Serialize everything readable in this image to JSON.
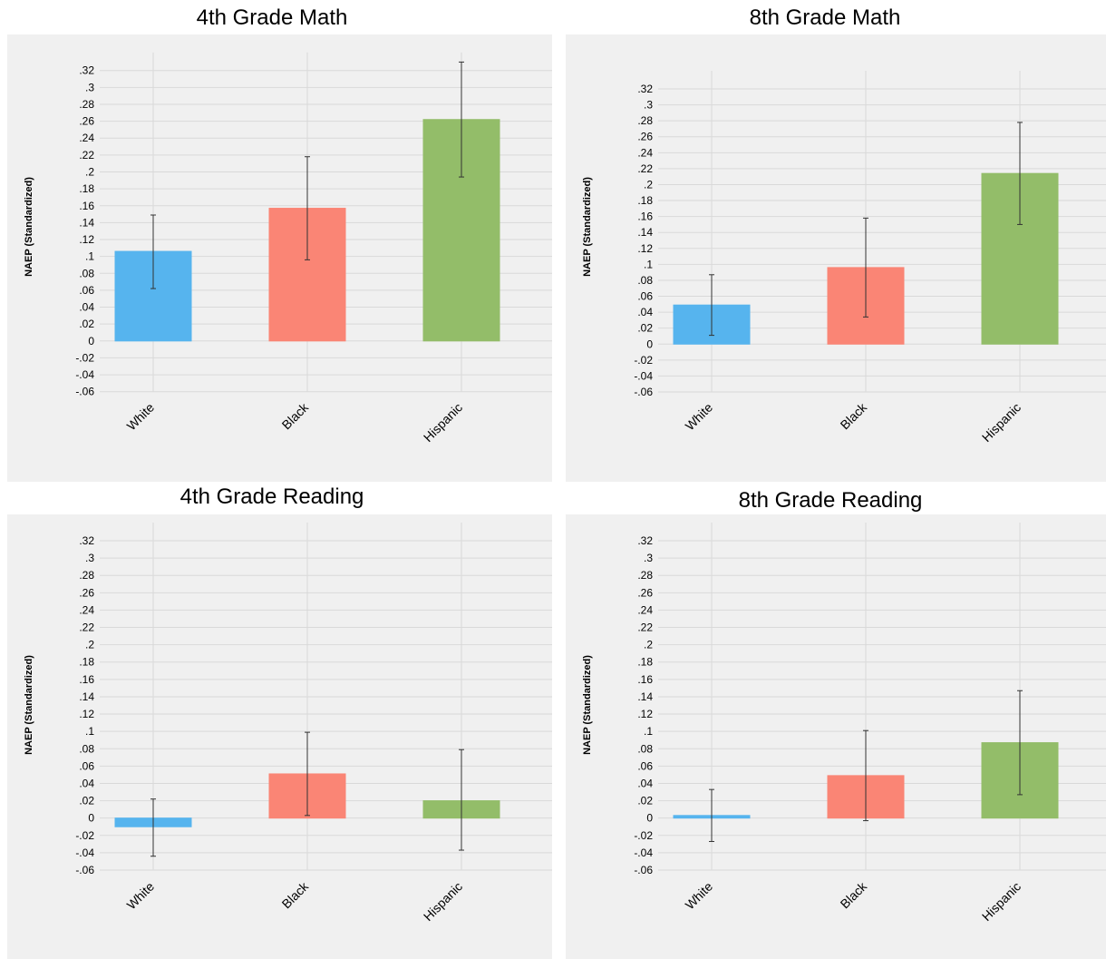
{
  "colors": {
    "White": "#56b4ee",
    "Black": "#fa8575",
    "Hispanic": "#93bd69"
  },
  "chart_data": [
    {
      "type": "bar",
      "title": "4th Grade Math",
      "ylabel": "NAEP (Standardized)",
      "xlabel": "",
      "categories": [
        "White",
        "Black",
        "Hispanic"
      ],
      "values": [
        0.106,
        0.157,
        0.262
      ],
      "error_low": [
        0.062,
        0.096,
        0.194
      ],
      "error_high": [
        0.149,
        0.218,
        0.33
      ],
      "ylim": [
        -0.06,
        0.32
      ],
      "yticks": [
        ".32",
        ".3",
        ".28",
        ".26",
        ".24",
        ".22",
        ".2",
        ".18",
        ".16",
        ".14",
        ".12",
        ".1",
        ".08",
        ".06",
        ".04",
        ".02",
        "0",
        "-.02",
        "-.04",
        "-.06"
      ],
      "grid": true
    },
    {
      "type": "bar",
      "title": "8th Grade Math",
      "ylabel": "NAEP (Standardized)",
      "xlabel": "",
      "categories": [
        "White",
        "Black",
        "Hispanic"
      ],
      "values": [
        0.049,
        0.096,
        0.214
      ],
      "error_low": [
        0.011,
        0.034,
        0.15
      ],
      "error_high": [
        0.087,
        0.158,
        0.278
      ],
      "ylim": [
        -0.06,
        0.32
      ],
      "yticks": [
        ".32",
        ".3",
        ".28",
        ".26",
        ".24",
        ".22",
        ".2",
        ".18",
        ".16",
        ".14",
        ".12",
        ".1",
        ".08",
        ".06",
        ".04",
        ".02",
        "0",
        "-.02",
        "-.04",
        "-.06"
      ],
      "grid": true
    },
    {
      "type": "bar",
      "title": "4th Grade Reading",
      "ylabel": "NAEP (Standardized)",
      "xlabel": "",
      "categories": [
        "White",
        "Black",
        "Hispanic"
      ],
      "values": [
        -0.01,
        0.051,
        0.02
      ],
      "error_low": [
        -0.044,
        0.003,
        -0.037
      ],
      "error_high": [
        0.022,
        0.099,
        0.079
      ],
      "ylim": [
        -0.06,
        0.32
      ],
      "yticks": [
        ".32",
        ".3",
        ".28",
        ".26",
        ".24",
        ".22",
        ".2",
        ".18",
        ".16",
        ".14",
        ".12",
        ".1",
        ".08",
        ".06",
        ".04",
        ".02",
        "0",
        "-.02",
        "-.04",
        "-.06"
      ],
      "grid": true
    },
    {
      "type": "bar",
      "title": "8th Grade Reading",
      "ylabel": "NAEP (Standardized)",
      "xlabel": "",
      "categories": [
        "White",
        "Black",
        "Hispanic"
      ],
      "values": [
        0.003,
        0.049,
        0.087
      ],
      "error_low": [
        -0.027,
        -0.003,
        0.027
      ],
      "error_high": [
        0.033,
        0.101,
        0.147
      ],
      "ylim": [
        -0.06,
        0.32
      ],
      "yticks": [
        ".32",
        ".3",
        ".28",
        ".26",
        ".24",
        ".22",
        ".2",
        ".18",
        ".16",
        ".14",
        ".12",
        ".1",
        ".08",
        ".06",
        ".04",
        ".02",
        "0",
        "-.02",
        "-.04",
        "-.06"
      ],
      "grid": true
    }
  ]
}
